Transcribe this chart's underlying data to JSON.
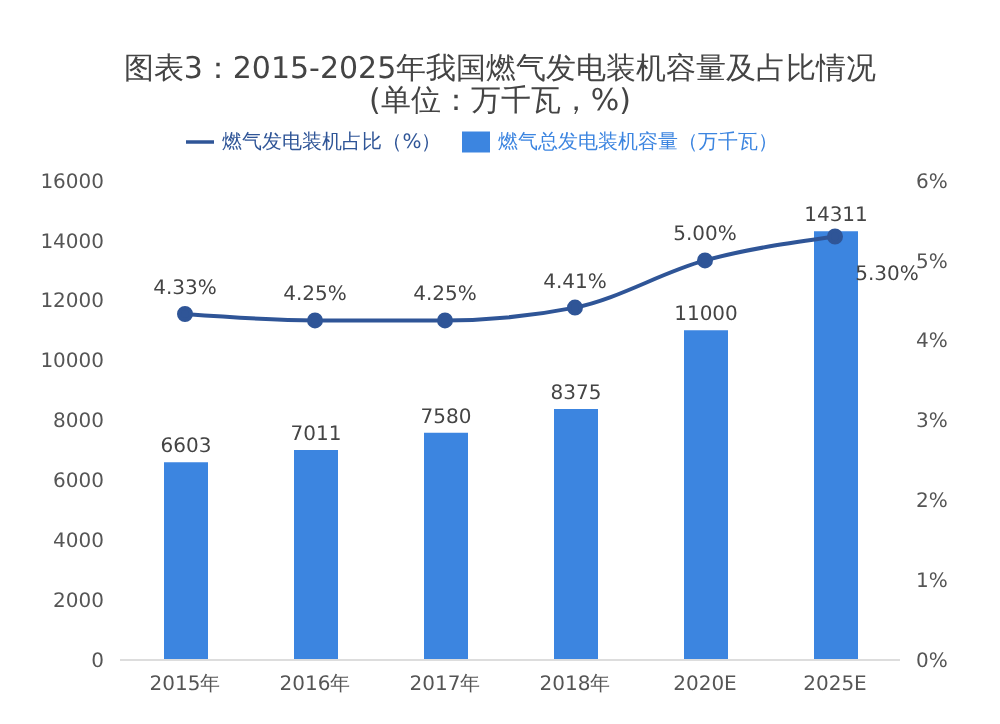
{
  "chart_data": {
    "type": "bar",
    "title": "图表3：2015-2025年我国燃气发电装机容量及占比情况(单位：万千瓦，%)",
    "categories": [
      "2015年",
      "2016年",
      "2017年",
      "2018年",
      "2020E",
      "2025E"
    ],
    "series": [
      {
        "name": "燃气总发电装机容量（万千瓦）",
        "color": "#3c85e0",
        "values": [
          6603,
          7011,
          7580,
          8375,
          11000,
          14311
        ],
        "value_labels": [
          "6603",
          "7011",
          "7580",
          "8375",
          "11000",
          "14311"
        ]
      },
      {
        "name": "燃气发电装机占比（%）",
        "type": "line",
        "axis": "y2",
        "color": "#2f5597",
        "marker": "circle",
        "values": [
          4.33,
          4.25,
          4.25,
          4.41,
          5.0,
          5.3
        ],
        "value_labels": [
          "4.33%",
          "4.25%",
          "4.25%",
          "4.41%",
          "5.00%",
          "5.30%"
        ]
      }
    ],
    "ylim": [
      0,
      16000
    ],
    "yticks": [
      0,
      2000,
      4000,
      6000,
      8000,
      10000,
      12000,
      14000,
      16000
    ],
    "y2lim": [
      0,
      6
    ],
    "y2ticks": [
      {
        "value": 0,
        "label": "0%"
      },
      {
        "value": 1,
        "label": "1%"
      },
      {
        "value": 2,
        "label": "2%"
      },
      {
        "value": 3,
        "label": "3%"
      },
      {
        "value": 4,
        "label": "4%"
      },
      {
        "value": 5,
        "label": "5%"
      },
      {
        "value": 6,
        "label": "6%"
      }
    ],
    "grid": false,
    "legend": "top"
  }
}
